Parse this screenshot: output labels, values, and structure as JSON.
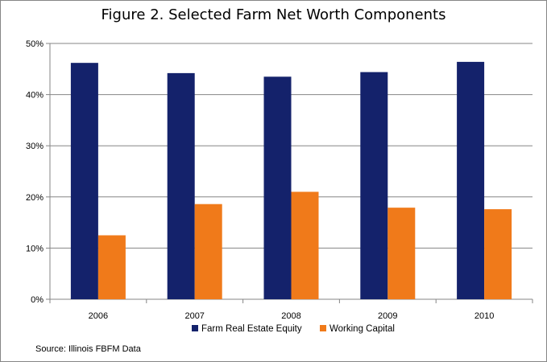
{
  "chart_data": {
    "type": "bar",
    "title": "Figure 2. Selected Farm Net Worth Components",
    "categories": [
      "2006",
      "2007",
      "2008",
      "2009",
      "2010"
    ],
    "series": [
      {
        "name": "Farm Real Estate Equity",
        "color": "#14226B",
        "values": [
          46.2,
          44.2,
          43.5,
          44.4,
          46.4
        ]
      },
      {
        "name": "Working Capital",
        "color": "#F07A1A",
        "values": [
          12.5,
          18.6,
          21.0,
          17.9,
          17.6
        ]
      }
    ],
    "yticks": [
      "0%",
      "10%",
      "20%",
      "30%",
      "40%",
      "50%"
    ],
    "ylim": [
      0,
      50
    ],
    "ylabel_unit": "%",
    "grid": true,
    "legend_position": "bottom"
  },
  "source_note": "Source: Illinois FBFM Data"
}
